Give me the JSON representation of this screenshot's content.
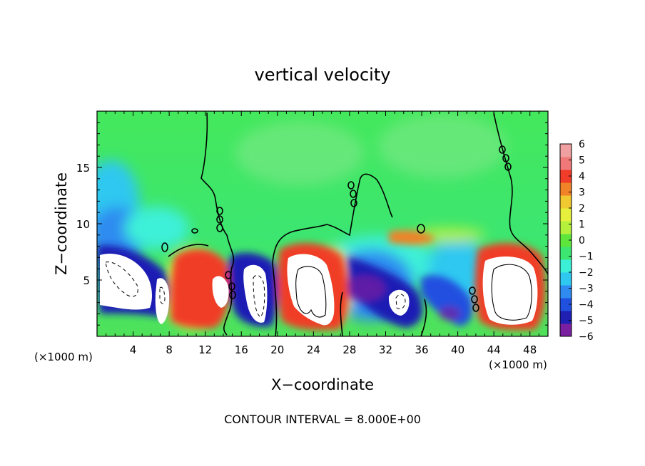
{
  "chart_data": {
    "type": "heatmap",
    "title": "vertical velocity",
    "xlabel": "X−coordinate",
    "ylabel": "Z−coordinate",
    "x_unit_label": "(×1000 m)",
    "footer": "CONTOUR INTERVAL = 8.000E+00",
    "xlim": [
      0,
      50
    ],
    "ylim": [
      0,
      20
    ],
    "x_ticks": [
      4,
      8,
      12,
      16,
      20,
      24,
      28,
      32,
      36,
      40,
      44,
      48
    ],
    "y_ticks": [
      5,
      10,
      15
    ],
    "colorbar": {
      "min": -6,
      "max": 6,
      "tick_labels": [
        "6",
        "5",
        "4",
        "3",
        "2",
        "1",
        "0",
        "−1",
        "−2",
        "−3",
        "−4",
        "−5",
        "−6"
      ],
      "colors": [
        "#7a1fa0",
        "#1f1fb4",
        "#2050e0",
        "#2f8bf0",
        "#2fc8f0",
        "#3cf0d8",
        "#3ce670",
        "#5fe63c",
        "#b4f03c",
        "#e6f03c",
        "#f0c830",
        "#f08228",
        "#f03c28",
        "#f07878",
        "#f0a0a0"
      ]
    },
    "features": [
      {
        "kind": "updraft_core",
        "x": 3.0,
        "z": 5.0
      },
      {
        "kind": "updraft_core",
        "x": 6.9,
        "z": 3.4
      },
      {
        "kind": "updraft_core",
        "x": 13.7,
        "z": 4.5
      },
      {
        "kind": "downdraft_core",
        "x": 17.5,
        "z": 4.3
      },
      {
        "kind": "updraft_core",
        "x": 24.1,
        "z": 4.6
      },
      {
        "kind": "downdraft_core",
        "x": 33.4,
        "z": 3.1
      },
      {
        "kind": "updraft_core",
        "x": 45.5,
        "z": 4.5
      },
      {
        "kind": "downdraft_band",
        "x": 30.5,
        "z": 5.0
      },
      {
        "kind": "downdraft_band",
        "x": 39.5,
        "z": 4.0
      }
    ]
  }
}
